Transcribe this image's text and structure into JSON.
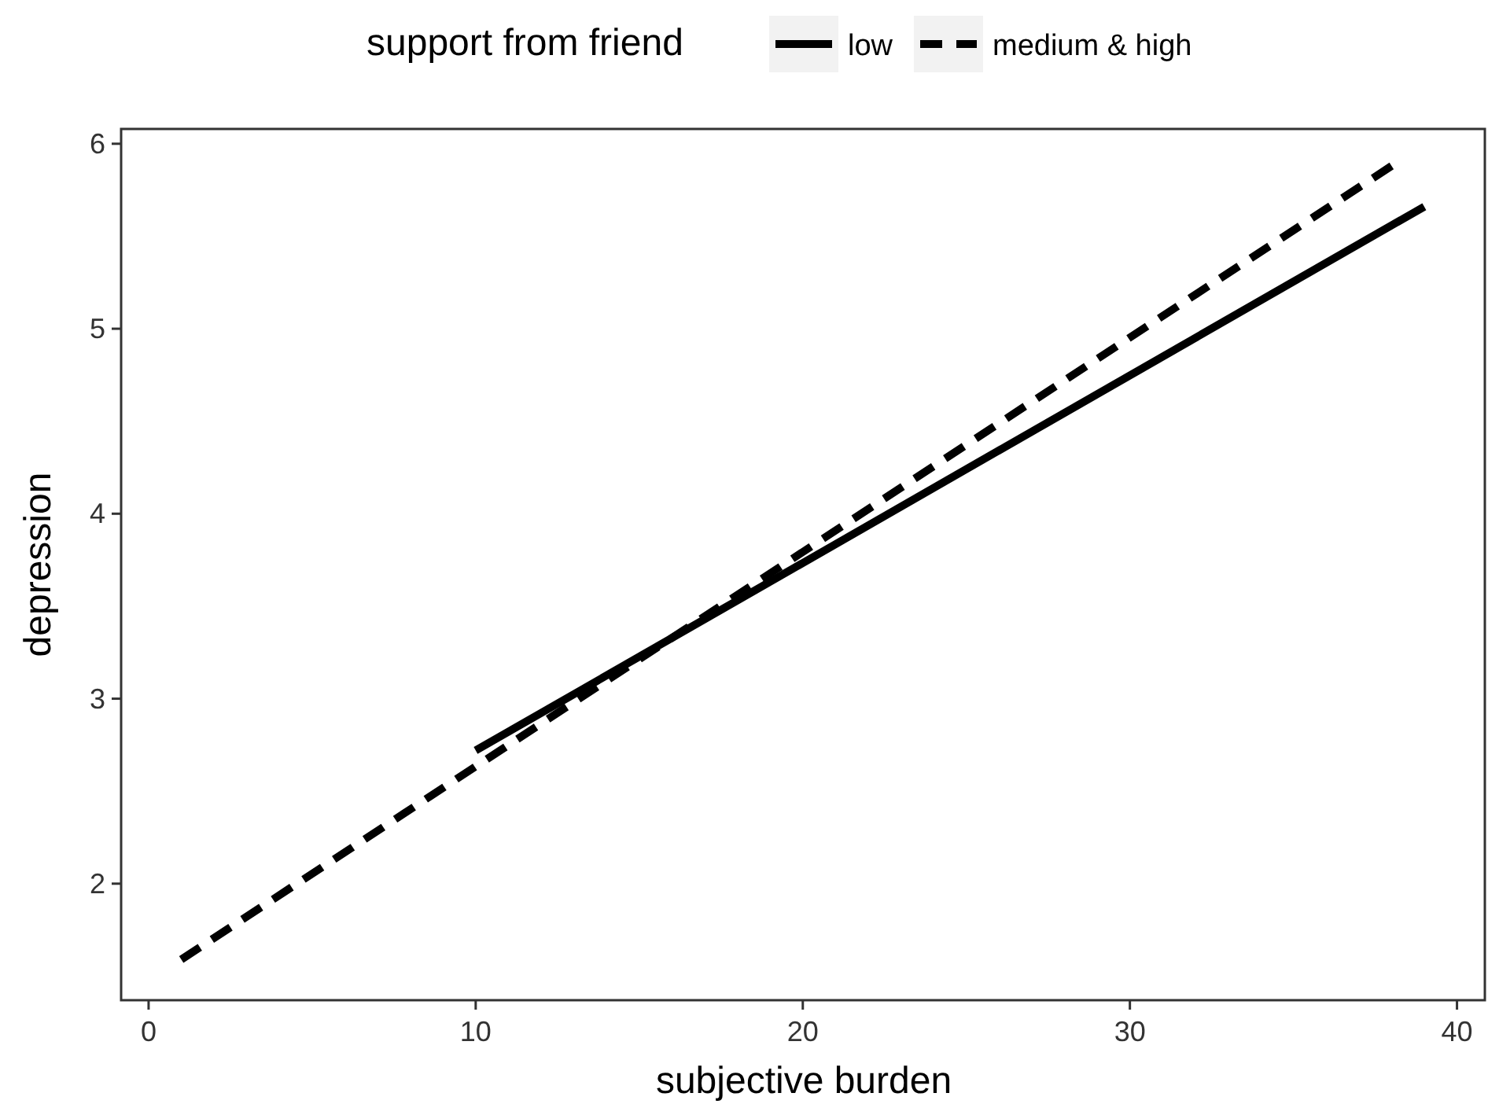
{
  "chart_data": {
    "type": "line",
    "xlabel": "subjective burden",
    "ylabel": "depression",
    "legend_title": "support from friend",
    "legend": "top",
    "series": [
      {
        "name": "low",
        "color": "#000000",
        "line_style": "solid",
        "x": [
          10,
          39
        ],
        "values": [
          2.72,
          5.66
        ]
      },
      {
        "name": "medium & high",
        "color": "#000000",
        "line_style": "dashed",
        "x": [
          1,
          38
        ],
        "values": [
          1.59,
          5.88
        ]
      }
    ],
    "xlim": [
      -0.84,
      40.9
    ],
    "xticks": [
      0,
      10,
      20,
      30,
      40
    ],
    "ylim": [
      1.37,
      6.08
    ],
    "yticks": [
      2,
      3,
      4,
      5,
      6
    ],
    "grid": false,
    "marker": "none"
  }
}
